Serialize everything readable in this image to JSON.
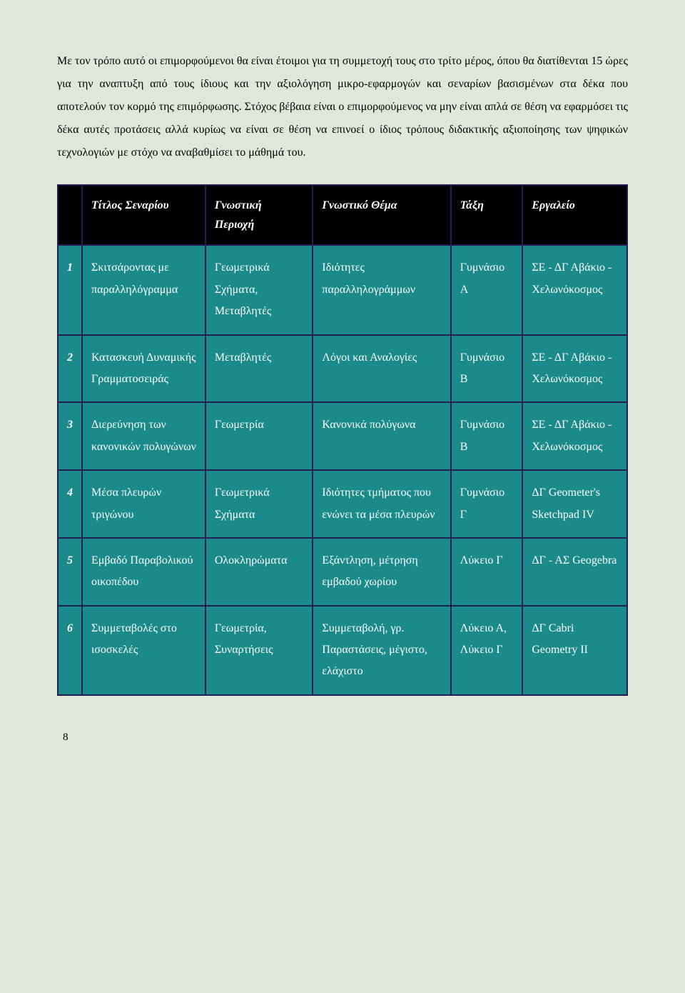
{
  "paragraph": "Με τον τρόπο αυτό οι επιμορφούμενοι θα είναι έτοιμοι για τη συμμετοχή τους στο τρίτο μέρος, όπου θα διατίθενται 15 ώρες για την αναπτυξη από τους ίδιους και την αξιολόγηση μικρο-εφαρμογών και σεναρίων βασισμένων στα δέκα που αποτελούν τον κορμό της επιμόρφωσης. Στόχος βέβαια είναι ο επιμορφούμενος να μην είναι απλά σε θέση να εφαρμόσει τις δέκα αυτές προτάσεις αλλά κυρίως να είναι σε θέση να επινοεί ο ίδιος τρόπους διδακτικής αξιοποίησης των ψηφικών τεχνολογιών με στόχο να αναβαθμίσει το μάθημά του.",
  "table": {
    "headers": {
      "idx": "",
      "title": "Τίτλος Σεναρίου",
      "domain": "Γνωστική Περιοχή",
      "topic": "Γνωστικό Θέμα",
      "grade": "Τάξη",
      "tool": "Εργαλείο"
    },
    "rows": [
      {
        "idx": "1",
        "title": "Σκιτσάροντας με παραλληλόγραμμα",
        "domain": "Γεωμετρικά Σχήματα, Μεταβλητές",
        "topic": "Ιδιότητες παραλληλογράμμων",
        "grade": "Γυμνάσιο Α",
        "tool": "ΣΕ - ΔΓ Αβάκιο - Χελωνόκοσμος"
      },
      {
        "idx": "2",
        "title": "Κατασκευή Δυναμικής Γραμματοσειράς",
        "domain": "Μεταβλητές",
        "topic": "Λόγοι και Αναλογίες",
        "grade": "Γυμνάσιο Β",
        "tool": "ΣΕ - ΔΓ Αβάκιο - Χελωνόκοσμος"
      },
      {
        "idx": "3",
        "title": "Διερεύνηση των κανονικών πολυγώνων",
        "domain": "Γεωμετρία",
        "topic": "Κανονικά πολύγωνα",
        "grade": "Γυμνάσιο Β",
        "tool": "ΣΕ - ΔΓ Αβάκιο - Χελωνόκοσμος"
      },
      {
        "idx": "4",
        "title": "Μέσα πλευρών τριγώνου",
        "domain": "Γεωμετρικά Σχήματα",
        "topic": "Ιδιότητες τμήματος που ενώνει τα μέσα πλευρών",
        "grade": "Γυμνάσιο Γ",
        "tool": "ΔΓ Geometer's Sketchpad IV"
      },
      {
        "idx": "5",
        "title": "Εμβαδό Παραβολικού οικοπέδου",
        "domain": "Ολοκληρώματα",
        "topic": "Εξάντληση, μέτρηση εμβαδού χωρίου",
        "grade": "Λύκειο Γ",
        "tool": "ΔΓ - ΑΣ Geogebra"
      },
      {
        "idx": "6",
        "title": "Συμμεταβολές στο ισοσκελές",
        "domain": "Γεωμετρία, Συναρτήσεις",
        "topic": "Συμμεταβολή, γρ. Παραστάσεις, μέγιστο, ελάχιστο",
        "grade": "Λύκειο Α, Λύκειο Γ",
        "tool": "ΔΓ Cabri Geometry II"
      }
    ]
  },
  "page_number": "8",
  "colors": {
    "page_bg": "#dfe8d8",
    "table_border": "#231f55",
    "header_bg": "#000000",
    "cell_bg": "#1a8a8a",
    "cell_text": "#ffffff"
  }
}
